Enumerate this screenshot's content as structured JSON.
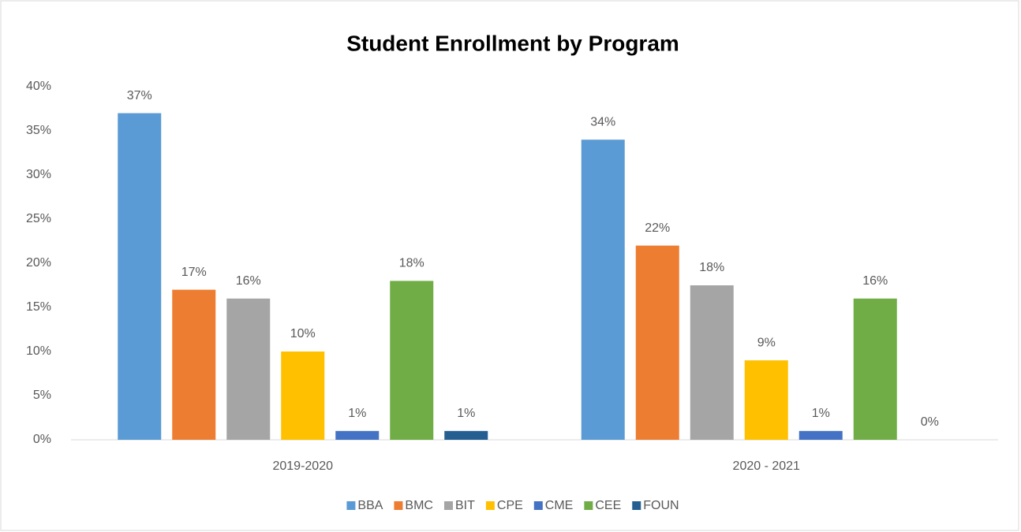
{
  "chart_data": {
    "type": "bar",
    "title": "Student Enrollment by Program",
    "categories": [
      "2019-2020",
      "2020 - 2021"
    ],
    "series": [
      {
        "name": "BBA",
        "color": "#5b9bd5",
        "values": [
          37,
          34
        ],
        "value_labels": [
          "37%",
          "34%"
        ]
      },
      {
        "name": "BMC",
        "color": "#ed7d31",
        "values": [
          17,
          22
        ],
        "value_labels": [
          "17%",
          "22%"
        ]
      },
      {
        "name": "BIT",
        "color": "#a5a5a5",
        "values": [
          16,
          17.5
        ],
        "value_labels": [
          "16%",
          "18%"
        ]
      },
      {
        "name": "CPE",
        "color": "#ffc000",
        "values": [
          10,
          9
        ],
        "value_labels": [
          "10%",
          "9%"
        ]
      },
      {
        "name": "CME",
        "color": "#4472c4",
        "values": [
          1,
          1
        ],
        "value_labels": [
          "1%",
          "1%"
        ]
      },
      {
        "name": "CEE",
        "color": "#70ad47",
        "values": [
          18,
          16
        ],
        "value_labels": [
          "18%",
          "16%"
        ]
      },
      {
        "name": "FOUN",
        "color": "#255e91",
        "values": [
          1,
          0
        ],
        "value_labels": [
          "1%",
          "0%"
        ]
      }
    ],
    "ylim": [
      0,
      40
    ],
    "yticks": [
      {
        "value": 0,
        "label": "0%"
      },
      {
        "value": 5,
        "label": "5%"
      },
      {
        "value": 10,
        "label": "10%"
      },
      {
        "value": 15,
        "label": "15%"
      },
      {
        "value": 20,
        "label": "20%"
      },
      {
        "value": 25,
        "label": "25%"
      },
      {
        "value": 30,
        "label": "30%"
      },
      {
        "value": 35,
        "label": "35%"
      },
      {
        "value": 40,
        "label": "40%"
      }
    ],
    "grid": false,
    "legend": "bottom"
  }
}
